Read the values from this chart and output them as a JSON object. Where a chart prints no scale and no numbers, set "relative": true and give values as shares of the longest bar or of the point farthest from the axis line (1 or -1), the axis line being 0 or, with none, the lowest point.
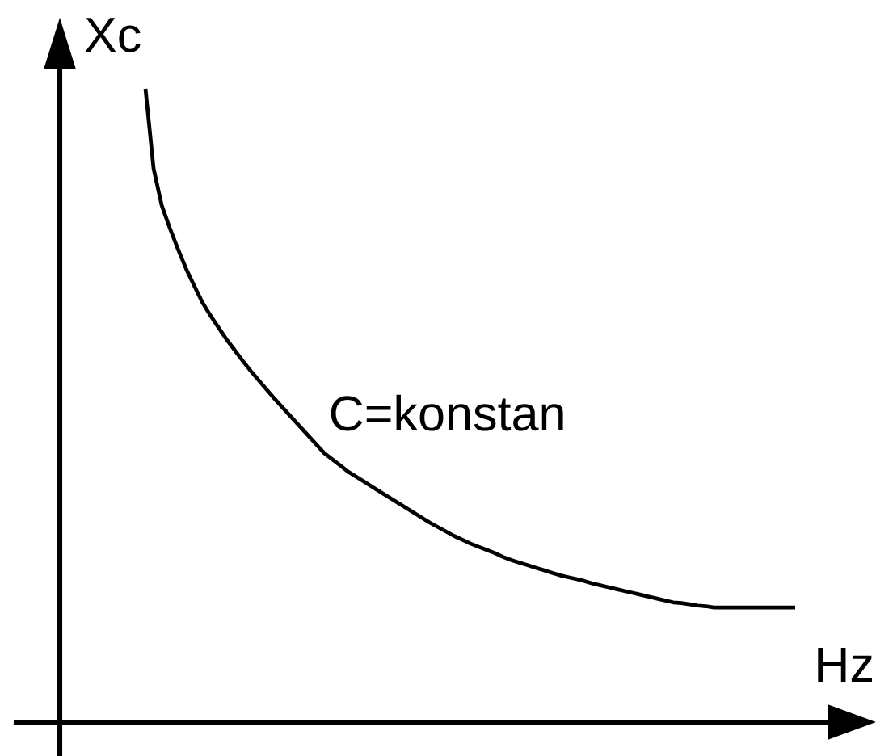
{
  "chart_data": {
    "type": "line",
    "xlabel": "Hz",
    "ylabel": "Xc",
    "relative": true,
    "tick_labels": false,
    "line_style": "solid",
    "categories": [
      null,
      null,
      null,
      null,
      null,
      null,
      null,
      null,
      null,
      null,
      null,
      null,
      null,
      null,
      null,
      null,
      null,
      null,
      null,
      null,
      null,
      null,
      null,
      null,
      null,
      null,
      null,
      null,
      null,
      null,
      null,
      null,
      null,
      null,
      null,
      null,
      null,
      null,
      null,
      null,
      null,
      null,
      null,
      null,
      null,
      null,
      null,
      null,
      null,
      null,
      null,
      null,
      null,
      null,
      null,
      null,
      null,
      null,
      null,
      null,
      null,
      null,
      null,
      null,
      null,
      null,
      null,
      null,
      null,
      null,
      null,
      null,
      null,
      null,
      null,
      null,
      null,
      null,
      null,
      null,
      null
    ],
    "series": [
      {
        "name": "C=konstan",
        "color": "#000000",
        "values": [
          1.0,
          0.874,
          0.816,
          0.78,
          0.747,
          0.716,
          0.689,
          0.663,
          0.642,
          0.623,
          0.604,
          0.587,
          0.57,
          0.554,
          0.539,
          0.524,
          0.509,
          0.495,
          0.481,
          0.467,
          0.453,
          0.439,
          0.425,
          0.415,
          0.405,
          0.395,
          0.387,
          0.379,
          0.371,
          0.363,
          0.355,
          0.347,
          0.339,
          0.331,
          0.323,
          0.315,
          0.308,
          0.301,
          0.294,
          0.288,
          0.282,
          0.277,
          0.272,
          0.267,
          0.261,
          0.256,
          0.252,
          0.248,
          0.244,
          0.24,
          0.236,
          0.232,
          0.229,
          0.226,
          0.223,
          0.219,
          0.216,
          0.213,
          0.21,
          0.207,
          0.204,
          0.201,
          0.198,
          0.195,
          0.192,
          0.189,
          0.188,
          0.186,
          0.184,
          0.183,
          0.181,
          0.181,
          0.181,
          0.181,
          0.181,
          0.181,
          0.181,
          0.181,
          0.181,
          0.181,
          0.181
        ]
      }
    ]
  }
}
